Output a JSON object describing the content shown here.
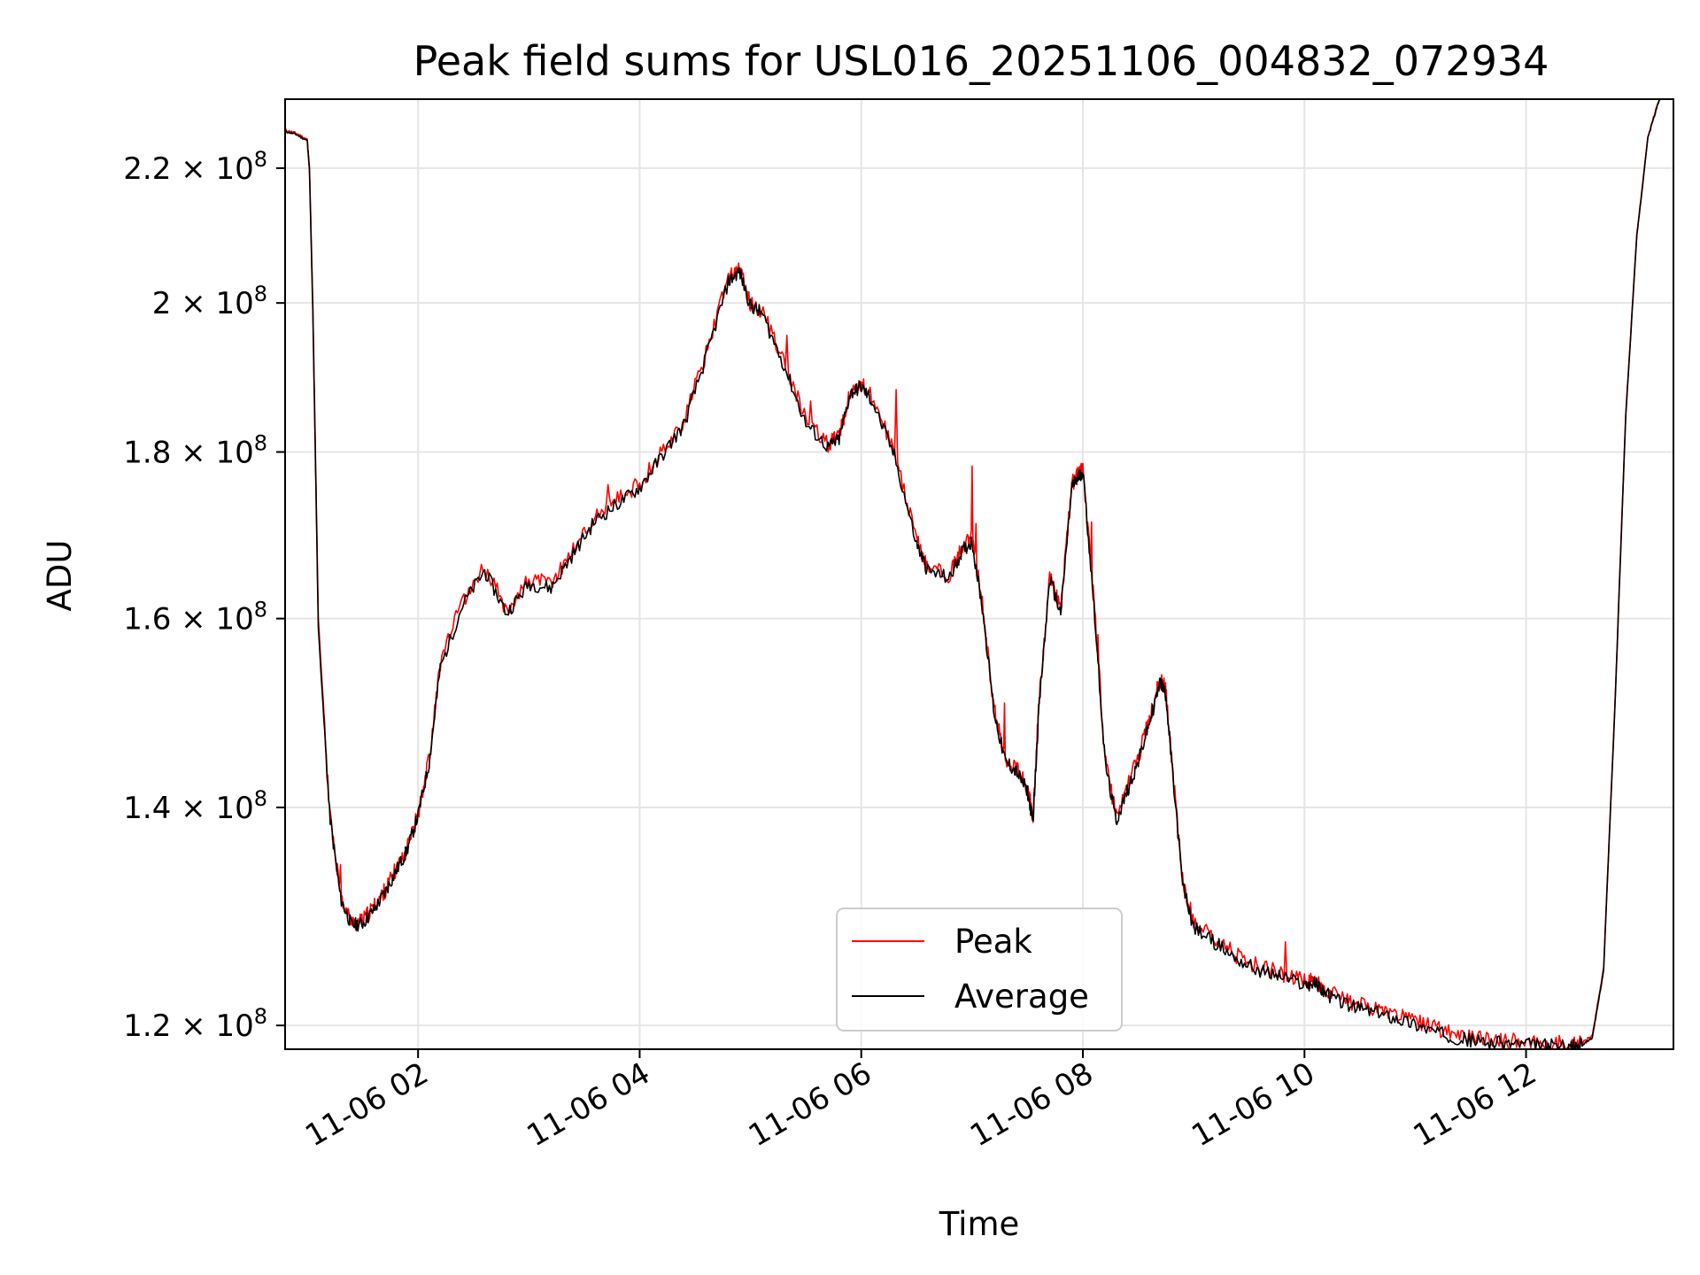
{
  "chart_data": {
    "type": "line",
    "title": "Peak field sums for USL016_20251106_004832_072934",
    "xlabel": "Time",
    "ylabel": "ADU",
    "yscale": "log",
    "xlim_hours": [
      0.8,
      13.33
    ],
    "ylim": [
      118000000,
      231000000
    ],
    "grid": true,
    "legend_position": "lower-center",
    "x_ticks": [
      {
        "value": 2,
        "label": "11-06 02"
      },
      {
        "value": 4,
        "label": "11-06 04"
      },
      {
        "value": 6,
        "label": "11-06 06"
      },
      {
        "value": 8,
        "label": "11-06 08"
      },
      {
        "value": 10,
        "label": "11-06 10"
      },
      {
        "value": 12,
        "label": "11-06 12"
      }
    ],
    "y_ticks": [
      {
        "value": 120000000,
        "mantissa": "1.2",
        "exp": "8"
      },
      {
        "value": 140000000,
        "mantissa": "1.4",
        "exp": "8"
      },
      {
        "value": 160000000,
        "mantissa": "1.6",
        "exp": "8"
      },
      {
        "value": 180000000,
        "mantissa": "1.8",
        "exp": "8"
      },
      {
        "value": 200000000,
        "mantissa": "2",
        "exp": "8"
      },
      {
        "value": 220000000,
        "mantissa": "2.2",
        "exp": "8"
      }
    ],
    "series": [
      {
        "name": "Peak",
        "color": "#ff0000",
        "x": [
          0.8,
          0.9,
          1.0,
          1.02,
          1.05,
          1.1,
          1.2,
          1.3,
          1.4,
          1.5,
          1.6,
          1.7,
          1.8,
          1.9,
          2.0,
          2.1,
          2.2,
          2.4,
          2.6,
          2.8,
          3.0,
          3.2,
          3.4,
          3.6,
          3.8,
          4.0,
          4.2,
          4.4,
          4.6,
          4.8,
          4.9,
          5.0,
          5.1,
          5.3,
          5.5,
          5.7,
          5.8,
          5.9,
          6.0,
          6.1,
          6.3,
          6.5,
          6.6,
          6.8,
          6.9,
          7.0,
          7.1,
          7.2,
          7.3,
          7.4,
          7.5,
          7.55,
          7.6,
          7.7,
          7.8,
          7.9,
          7.95,
          8.0,
          8.1,
          8.2,
          8.3,
          8.4,
          8.5,
          8.6,
          8.7,
          8.75,
          8.8,
          8.9,
          9.0,
          9.2,
          9.4,
          9.6,
          9.8,
          10.0,
          10.1,
          10.2,
          10.4,
          10.6,
          10.8,
          11.0,
          11.2,
          11.4,
          11.6,
          11.8,
          12.0,
          12.2,
          12.4,
          12.5,
          12.6,
          12.7,
          12.8,
          12.9,
          13.0,
          13.1,
          13.2,
          13.25,
          13.3
        ],
        "values": [
          226000000,
          225500000,
          224500000,
          220000000,
          200000000,
          160000000,
          140000000,
          131500000,
          129000000,
          129200000,
          130500000,
          132000000,
          134000000,
          136000000,
          139500000,
          145000000,
          155000000,
          162000000,
          166000000,
          161000000,
          164500000,
          164000000,
          168000000,
          172000000,
          174000000,
          176000000,
          180000000,
          184000000,
          193000000,
          203500000,
          205000000,
          200000000,
          199000000,
          192000000,
          184000000,
          181000000,
          182000000,
          188000000,
          189000000,
          187000000,
          180000000,
          169000000,
          166000000,
          165000000,
          168000000,
          169500000,
          161000000,
          150000000,
          145000000,
          144000000,
          142000000,
          139000000,
          150000000,
          165000000,
          161000000,
          176000000,
          177000000,
          178000000,
          162000000,
          145000000,
          139000000,
          142000000,
          145000000,
          149000000,
          153500000,
          152000000,
          145000000,
          133000000,
          129000000,
          127500000,
          126000000,
          125000000,
          124500000,
          123800000,
          123900000,
          123000000,
          122000000,
          121500000,
          121000000,
          120400000,
          119700000,
          119200000,
          118800000,
          118700000,
          118600000,
          118500000,
          118400000,
          118500000,
          119200000,
          125000000,
          150000000,
          185000000,
          210000000,
          225000000,
          231000000,
          232000000,
          232000000
        ]
      },
      {
        "name": "Average",
        "color": "#000000",
        "x": [
          0.8,
          0.9,
          1.0,
          1.02,
          1.05,
          1.1,
          1.2,
          1.3,
          1.4,
          1.5,
          1.6,
          1.7,
          1.8,
          1.9,
          2.0,
          2.1,
          2.2,
          2.4,
          2.6,
          2.8,
          3.0,
          3.2,
          3.4,
          3.6,
          3.8,
          4.0,
          4.2,
          4.4,
          4.6,
          4.8,
          4.9,
          5.0,
          5.1,
          5.3,
          5.5,
          5.7,
          5.8,
          5.9,
          6.0,
          6.1,
          6.3,
          6.5,
          6.6,
          6.8,
          6.9,
          7.0,
          7.1,
          7.2,
          7.3,
          7.4,
          7.5,
          7.55,
          7.6,
          7.7,
          7.8,
          7.9,
          7.95,
          8.0,
          8.1,
          8.2,
          8.3,
          8.4,
          8.5,
          8.6,
          8.7,
          8.75,
          8.8,
          8.9,
          9.0,
          9.2,
          9.4,
          9.6,
          9.8,
          10.0,
          10.1,
          10.2,
          10.4,
          10.6,
          10.8,
          11.0,
          11.2,
          11.4,
          11.6,
          11.8,
          12.0,
          12.2,
          12.4,
          12.5,
          12.6,
          12.7,
          12.8,
          12.9,
          13.0,
          13.1,
          13.2,
          13.25,
          13.3
        ],
        "values": [
          225800000,
          225300000,
          224300000,
          219500000,
          199000000,
          159000000,
          139500000,
          131300000,
          128800000,
          129000000,
          130200000,
          131800000,
          133800000,
          135800000,
          139200000,
          144500000,
          154500000,
          161500000,
          165500000,
          160600000,
          164000000,
          163500000,
          167500000,
          171500000,
          173500000,
          175500000,
          179500000,
          183500000,
          192500000,
          203000000,
          204500000,
          199600000,
          198600000,
          191500000,
          183600000,
          180600000,
          181600000,
          187600000,
          188500000,
          186500000,
          179500000,
          168600000,
          165500000,
          164600000,
          167600000,
          169000000,
          160600000,
          149600000,
          144600000,
          143600000,
          141600000,
          138600000,
          149600000,
          164600000,
          160600000,
          175600000,
          176600000,
          177600000,
          161600000,
          144600000,
          138600000,
          141600000,
          144600000,
          148600000,
          153000000,
          151600000,
          144600000,
          132600000,
          128600000,
          127200000,
          125700000,
          124700000,
          124200000,
          123500000,
          123600000,
          122700000,
          121700000,
          121200000,
          120700000,
          120100000,
          119400000,
          118900000,
          118600000,
          118500000,
          118400000,
          118300000,
          118200000,
          118300000,
          119000000,
          124800000,
          149800000,
          184800000,
          209800000,
          224800000,
          230800000,
          231800000,
          231800000
        ]
      }
    ]
  }
}
